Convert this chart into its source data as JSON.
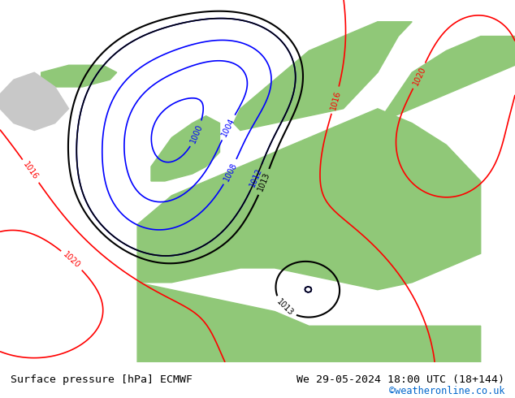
{
  "title_left": "Surface pressure [hPa] ECMWF",
  "title_right": "We 29-05-2024 18:00 UTC (18+144)",
  "copyright": "©weatheronline.co.uk",
  "bg_color": "#c8c8c8",
  "land_color": "#90c878",
  "sea_color": "#c8d8c8",
  "text_color_black": "#000000",
  "text_color_blue": "#0000cc",
  "text_color_red": "#cc0000",
  "text_color_cyan": "#0099cc",
  "footer_bg": "#e8e8e8",
  "figsize": [
    6.34,
    4.9
  ],
  "dpi": 100
}
